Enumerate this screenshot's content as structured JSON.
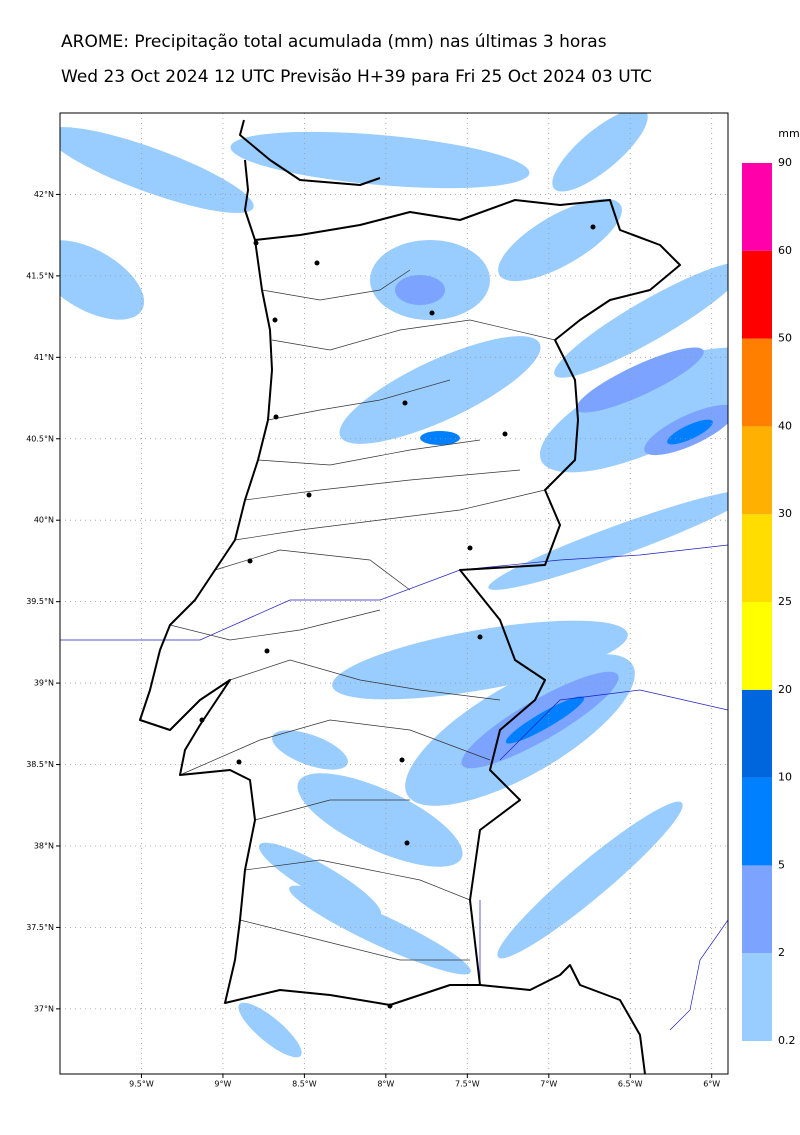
{
  "header": {
    "title": "AROME: Precipitação total acumulada (mm) nas últimas 3 horas",
    "subtitle": "Wed 23 Oct 2024 12 UTC Previsão H+39 para Fri 25 Oct 2024 03 UTC"
  },
  "map": {
    "xlim": [
      -10,
      -5.9
    ],
    "ylim": [
      36.6,
      42.5
    ],
    "grid": true,
    "xticks": [
      {
        "value": -9.5,
        "label": "9.5°W"
      },
      {
        "value": -9,
        "label": "9°W"
      },
      {
        "value": -8.5,
        "label": "8.5°W"
      },
      {
        "value": -8,
        "label": "8°W"
      },
      {
        "value": -7.5,
        "label": "7.5°W"
      },
      {
        "value": -7,
        "label": "7°W"
      },
      {
        "value": -6.5,
        "label": "6.5°W"
      },
      {
        "value": -6,
        "label": "6°W"
      }
    ],
    "yticks": [
      {
        "value": 42,
        "label": "42°N"
      },
      {
        "value": 41.5,
        "label": "41.5°N"
      },
      {
        "value": 41,
        "label": "41°N"
      },
      {
        "value": 40.5,
        "label": "40.5°N"
      },
      {
        "value": 40,
        "label": "40°N"
      },
      {
        "value": 39.5,
        "label": "39.5°N"
      },
      {
        "value": 39,
        "label": "39°N"
      },
      {
        "value": 38.5,
        "label": "38.5°N"
      },
      {
        "value": 38,
        "label": "38°N"
      },
      {
        "value": 37.5,
        "label": "37.5°N"
      },
      {
        "value": 37,
        "label": "37°N"
      }
    ]
  },
  "colorbar": {
    "unit": "mm",
    "levels": [
      0.2,
      2,
      5,
      10,
      20,
      25,
      30,
      40,
      50,
      60,
      90
    ],
    "colors": [
      "#99ccff",
      "#7ba3ff",
      "#0080ff",
      "#0066dd",
      "#ffff00",
      "#ffdd00",
      "#ffb000",
      "#ff8000",
      "#ff0000",
      "#ff00aa"
    ]
  }
}
